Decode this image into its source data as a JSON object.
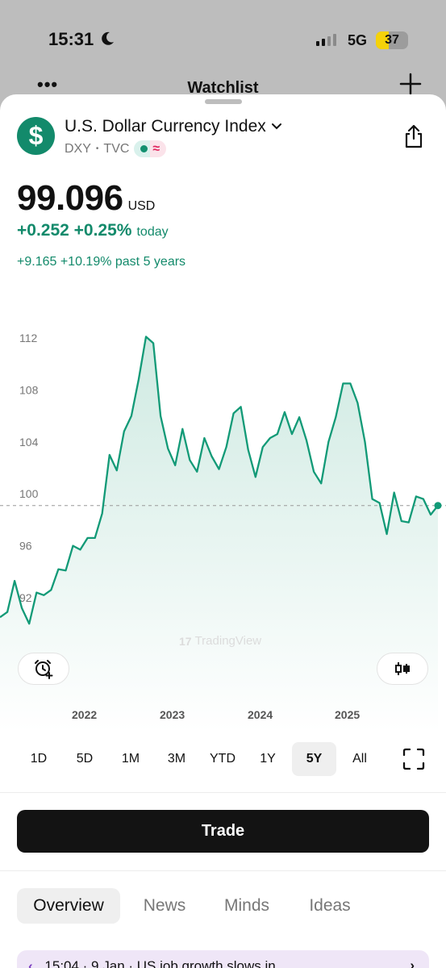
{
  "status_bar": {
    "time": "15:31",
    "network": "5G",
    "battery": "37"
  },
  "background_nav": {
    "title": "Watchlist"
  },
  "symbol": {
    "logo_glyph": "$",
    "name": "U.S. Dollar Currency Index",
    "ticker": "DXY",
    "separator": "•",
    "exchange": "TVC",
    "pill_glyph": "≈"
  },
  "quote": {
    "price": "99.096",
    "currency": "USD",
    "change_today": "+0.252 +0.25%",
    "today_label": "today",
    "change_5y": "+9.165 +10.19% past 5 years"
  },
  "colors": {
    "accent": "#138a6b",
    "line": "#129a77",
    "fill": "#dff2ec",
    "news_bg": "#efe6f7"
  },
  "chart_data": {
    "type": "area",
    "title": "",
    "xlabel": "",
    "ylabel": "",
    "ylim": [
      89.5,
      113
    ],
    "y_ticks": [
      112,
      108,
      104,
      100,
      96,
      92
    ],
    "x_ticks": [
      "2022",
      "2023",
      "2024",
      "2025"
    ],
    "reference_line": 99.096,
    "watermark": "TradingView",
    "series": [
      {
        "x": [
          "2021-01",
          "2021-02",
          "2021-03",
          "2021-04",
          "2021-05",
          "2021-06",
          "2021-07",
          "2021-08",
          "2021-09",
          "2021-10",
          "2021-11",
          "2021-12",
          "2022-01",
          "2022-02",
          "2022-03",
          "2022-04",
          "2022-05",
          "2022-06",
          "2022-07",
          "2022-08",
          "2022-09",
          "2022-10",
          "2022-11",
          "2022-12",
          "2023-01",
          "2023-02",
          "2023-03",
          "2023-04",
          "2023-05",
          "2023-06",
          "2023-07",
          "2023-08",
          "2023-09",
          "2023-10",
          "2023-11",
          "2023-12",
          "2024-01",
          "2024-02",
          "2024-03",
          "2024-04",
          "2024-05",
          "2024-06",
          "2024-07",
          "2024-08",
          "2024-09",
          "2024-10",
          "2024-11",
          "2024-12",
          "2025-01",
          "2025-02",
          "2025-03",
          "2025-04",
          "2025-05",
          "2025-06",
          "2025-07",
          "2025-08",
          "2025-09",
          "2025-10",
          "2025-11",
          "2025-12",
          "2026-01"
        ],
        "values": [
          90.5,
          90.9,
          93.3,
          91.2,
          90.0,
          92.4,
          92.2,
          92.6,
          94.2,
          94.1,
          96.0,
          95.7,
          96.6,
          96.6,
          98.5,
          103.0,
          101.8,
          104.8,
          106.0,
          108.8,
          112.1,
          111.6,
          106.0,
          103.5,
          102.2,
          105.0,
          102.6,
          101.7,
          104.3,
          102.9,
          101.9,
          103.6,
          106.2,
          106.7,
          103.4,
          101.3,
          103.6,
          104.3,
          104.6,
          106.3,
          104.6,
          105.9,
          104.1,
          101.7,
          100.8,
          104.0,
          105.9,
          108.5,
          108.5,
          107.0,
          104.0,
          99.6,
          99.3,
          96.9,
          100.1,
          97.9,
          97.8,
          99.8,
          99.6,
          98.4,
          99.1
        ]
      }
    ]
  },
  "range_selector": {
    "options": [
      "1D",
      "5D",
      "1M",
      "3M",
      "YTD",
      "1Y",
      "5Y",
      "All"
    ],
    "selected": "5Y"
  },
  "actions": {
    "trade_label": "Trade"
  },
  "tabs": {
    "items": [
      "Overview",
      "News",
      "Minds",
      "Ideas"
    ],
    "selected": "Overview"
  },
  "news": {
    "text": "15:04 · 9 Jan · US job growth slows in"
  }
}
